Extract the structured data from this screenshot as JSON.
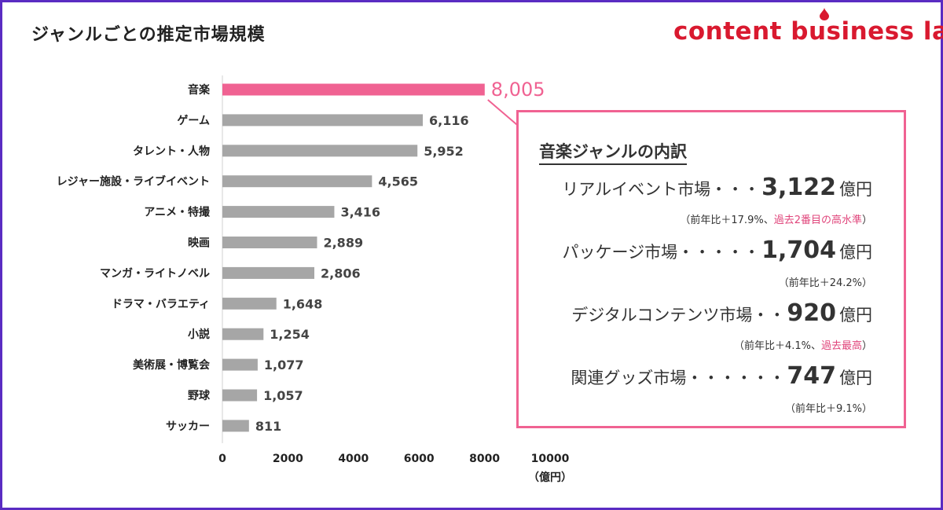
{
  "page": {
    "title": "ジャンルごとの推定市場規模",
    "brand": "content business lab"
  },
  "colors": {
    "highlight": "#f06292",
    "bar": "#a6a6a6",
    "frame": "#5a2cc2",
    "brand": "#d9192f"
  },
  "chart_data": {
    "type": "bar",
    "orientation": "horizontal",
    "categories": [
      "音楽",
      "ゲーム",
      "タレント・人物",
      "レジャー施設・ライブイベント",
      "アニメ・特撮",
      "映画",
      "マンガ・ライトノベル",
      "ドラマ・バラエティ",
      "小説",
      "美術展・博覧会",
      "野球",
      "サッカー"
    ],
    "values": [
      8005,
      6116,
      5952,
      4565,
      3416,
      2889,
      2806,
      1648,
      1254,
      1077,
      1057,
      811
    ],
    "value_labels": [
      "8,005",
      "6,116",
      "5,952",
      "4,565",
      "3,416",
      "2,889",
      "2,806",
      "1,648",
      "1,254",
      "1,077",
      "1,057",
      "811"
    ],
    "highlight_index": 0,
    "xlim": [
      0,
      10000
    ],
    "xticks": [
      "0",
      "2000",
      "4000",
      "6000",
      "8000",
      "10000"
    ],
    "xticks_values": [
      0,
      2000,
      4000,
      6000,
      8000,
      10000
    ],
    "x_unit": "（億円）",
    "grid": false
  },
  "callout": {
    "title": "音楽ジャンルの内訳",
    "rows": [
      {
        "label": "リアルイベント市場・・・",
        "value": "3,122",
        "unit": "億円",
        "note_prefix": "（前年比＋17.9%、",
        "note_highlight": "過去2番目の高水準",
        "note_suffix": "）"
      },
      {
        "label": "パッケージ市場・・・・・",
        "value": "1,704",
        "unit": "億円",
        "note_prefix": "（前年比＋24.2%）",
        "note_highlight": "",
        "note_suffix": ""
      },
      {
        "label": "デジタルコンテンツ市場・・",
        "value": "920",
        "unit": "億円",
        "note_prefix": "（前年比＋4.1%、",
        "note_highlight": "過去最高",
        "note_suffix": "）"
      },
      {
        "label": "関連グッズ市場・・・・・・",
        "value": "747",
        "unit": "億円",
        "note_prefix": "（前年比＋9.1%）",
        "note_highlight": "",
        "note_suffix": ""
      }
    ]
  }
}
